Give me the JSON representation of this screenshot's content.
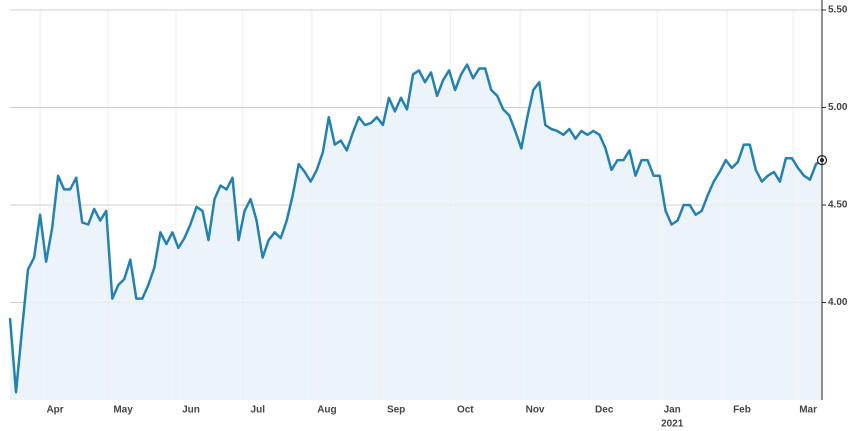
{
  "chart_data": {
    "type": "line",
    "series": [
      {
        "color": "#2481b0",
        "values": [
          3.92,
          3.54,
          3.86,
          4.17,
          4.23,
          4.45,
          4.21,
          4.38,
          4.65,
          4.58,
          4.58,
          4.64,
          4.41,
          4.4,
          4.48,
          4.42,
          4.47,
          4.02,
          4.09,
          4.12,
          4.22,
          4.02,
          4.02,
          4.09,
          4.18,
          4.36,
          4.3,
          4.36,
          4.28,
          4.33,
          4.4,
          4.49,
          4.47,
          4.32,
          4.53,
          4.6,
          4.58,
          4.64,
          4.32,
          4.47,
          4.53,
          4.42,
          4.23,
          4.32,
          4.36,
          4.33,
          4.42,
          4.55,
          4.71,
          4.67,
          4.62,
          4.68,
          4.77,
          4.95,
          4.81,
          4.83,
          4.78,
          4.87,
          4.95,
          4.91,
          4.92,
          4.95,
          4.91,
          5.05,
          4.98,
          5.05,
          4.99,
          5.17,
          5.19,
          5.13,
          5.18,
          5.06,
          5.14,
          5.19,
          5.09,
          5.17,
          5.22,
          5.15,
          5.2,
          5.2,
          5.09,
          5.06,
          4.99,
          4.96,
          4.88,
          4.79,
          4.95,
          5.09,
          5.13,
          4.91,
          4.89,
          4.88,
          4.86,
          4.89,
          4.84,
          4.88,
          4.86,
          4.88,
          4.86,
          4.79,
          4.68,
          4.73,
          4.73,
          4.78,
          4.65,
          4.73,
          4.73,
          4.65,
          4.65,
          4.47,
          4.4,
          4.42,
          4.5,
          4.5,
          4.45,
          4.47,
          4.55,
          4.62,
          4.67,
          4.73,
          4.69,
          4.72,
          4.81,
          4.81,
          4.68,
          4.62,
          4.65,
          4.67,
          4.62,
          4.74,
          4.74,
          4.69,
          4.65,
          4.63,
          4.71,
          4.73
        ]
      }
    ],
    "xlim": [
      0,
      135
    ],
    "xticks": [
      {
        "value": 5,
        "label": "Apr"
      },
      {
        "value": 16.3,
        "label": "May"
      },
      {
        "value": 27.6,
        "label": "Jun"
      },
      {
        "value": 38.7,
        "label": "Jul"
      },
      {
        "value": 50.2,
        "label": "Aug"
      },
      {
        "value": 61.7,
        "label": "Sep"
      },
      {
        "value": 73.2,
        "label": "Oct"
      },
      {
        "value": 84.8,
        "label": "Nov"
      },
      {
        "value": 96.3,
        "label": "Dec"
      },
      {
        "value": 107.6,
        "label": "Jan"
      },
      {
        "value": 119.2,
        "label": "Feb"
      },
      {
        "value": 130.2,
        "label": "Mar"
      }
    ],
    "year_label": "2021",
    "ylim": [
      3.5,
      5.5
    ],
    "yticks": [
      {
        "value": 4,
        "label": "4.00"
      },
      {
        "value": 4.5,
        "label": "4.50"
      },
      {
        "value": 5,
        "label": "5.00"
      },
      {
        "value": 5.5,
        "label": "5.50"
      }
    ],
    "grid": true
  }
}
